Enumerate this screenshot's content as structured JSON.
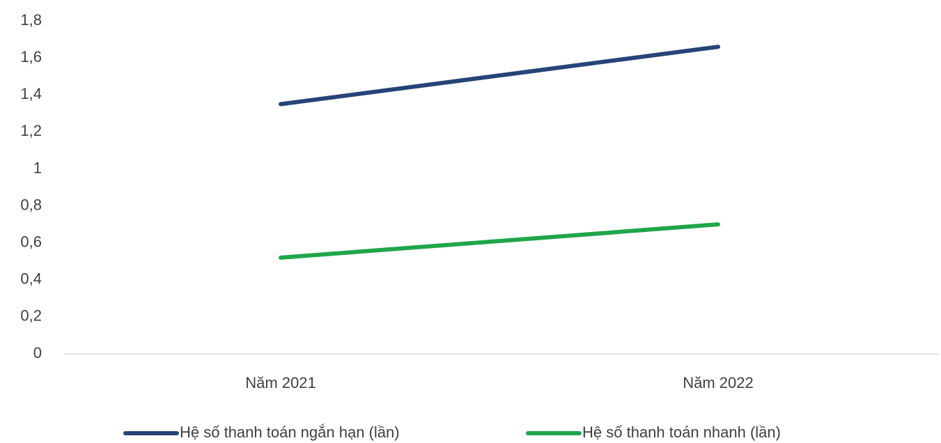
{
  "chart_data": {
    "type": "line",
    "categories": [
      "Năm 2021",
      "Năm 2022"
    ],
    "series": [
      {
        "name": "Hệ số thanh toán ngắn hạn (lần)",
        "color": "#264478",
        "values": [
          1.35,
          1.66
        ]
      },
      {
        "name": "Hệ số thanh toán nhanh (lần)",
        "color": "#1fa64a",
        "values": [
          0.52,
          0.7
        ]
      }
    ],
    "ylim": [
      0,
      1.8
    ],
    "yticks": [
      0,
      {
        "value": 0.2,
        "label": "0,2"
      },
      {
        "value": 0.4,
        "label": "0,4"
      },
      {
        "value": 0.6,
        "label": "0,6"
      },
      {
        "value": 0.8,
        "label": "0,8"
      },
      1,
      {
        "value": 1.2,
        "label": "1,2"
      },
      {
        "value": 1.4,
        "label": "1,4"
      },
      {
        "value": 1.6,
        "label": "1,6"
      },
      {
        "value": 1.8,
        "label": "1,8"
      }
    ],
    "grid": false,
    "legend": "bottom"
  }
}
